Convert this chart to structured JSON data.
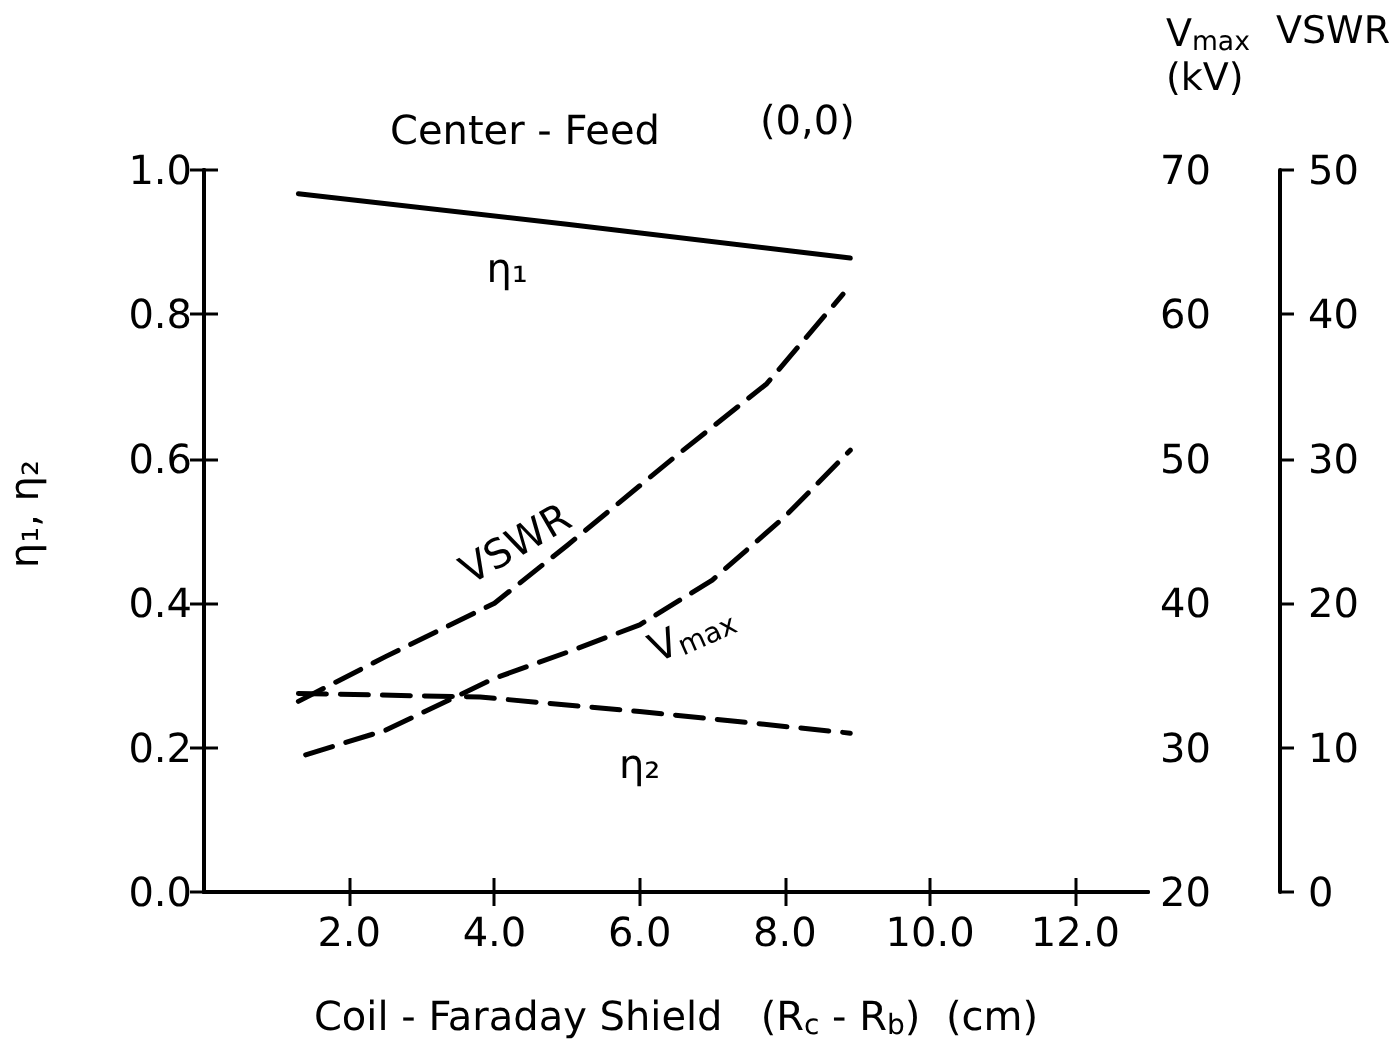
{
  "chart_data": {
    "type": "line",
    "title": "Center - Feed",
    "annotations": [
      "(0,0)"
    ],
    "xlabel": "Coil - Faraday Shield   (R$_{c}$ - R$_{b}$)  (cm)",
    "ylabel": "η₁, η₂",
    "y2label": "V$_{max}$ (kV)",
    "y3label": "VSWR",
    "xlim": [
      0,
      13
    ],
    "xticks": [
      {
        "value": 2,
        "label": "2.0"
      },
      {
        "value": 4,
        "label": "4.0"
      },
      {
        "value": 6,
        "label": "6.0"
      },
      {
        "value": 8,
        "label": "8.0"
      },
      {
        "value": 10,
        "label": "10.0"
      },
      {
        "value": 12,
        "label": "12.0"
      }
    ],
    "ylim": [
      0,
      1
    ],
    "yticks": [
      {
        "value": 0,
        "label": "0.0"
      },
      {
        "value": 0.2,
        "label": "0.2"
      },
      {
        "value": 0.4,
        "label": "0.4"
      },
      {
        "value": 0.6,
        "label": "0.6"
      },
      {
        "value": 0.8,
        "label": "0.8"
      },
      {
        "value": 1,
        "label": "1.0"
      }
    ],
    "y2lim": [
      20,
      70
    ],
    "y2ticks": [
      20,
      30,
      40,
      50,
      60,
      70
    ],
    "y3lim": [
      0,
      50
    ],
    "y3ticks": [
      0,
      10,
      20,
      30,
      40,
      50
    ],
    "grid": false,
    "legend": false,
    "marker": "none",
    "series": [
      {
        "name": "η₁",
        "color": "#000000",
        "line_style": "solid",
        "x": [
          1.3,
          5,
          8.9
        ],
        "values": [
          0.967,
          0.925,
          0.878
        ]
      },
      {
        "name": "η₂",
        "color": "#000000",
        "line_style": "dashed",
        "x": [
          1.3,
          3.8,
          6,
          8.9
        ],
        "values": [
          0.275,
          0.27,
          0.25,
          0.22
        ]
      },
      {
        "name": "V$_{max}$",
        "color": "#000000",
        "line_style": "dashed",
        "axis": "y2",
        "x": [
          1.4,
          2.5,
          4,
          5,
          6,
          7,
          8,
          8.9
        ],
        "values": [
          29.5,
          31.2,
          34.8,
          36.6,
          38.5,
          41.6,
          46,
          50.6
        ]
      },
      {
        "name": "VSWR",
        "color": "#000000",
        "line_style": "dashed",
        "axis": "y3",
        "x": [
          1.3,
          2.5,
          4,
          5,
          6.5,
          7.75,
          8.8
        ],
        "values": [
          13.2,
          16.3,
          20,
          24,
          30.2,
          35.2,
          41.4
        ]
      }
    ]
  }
}
